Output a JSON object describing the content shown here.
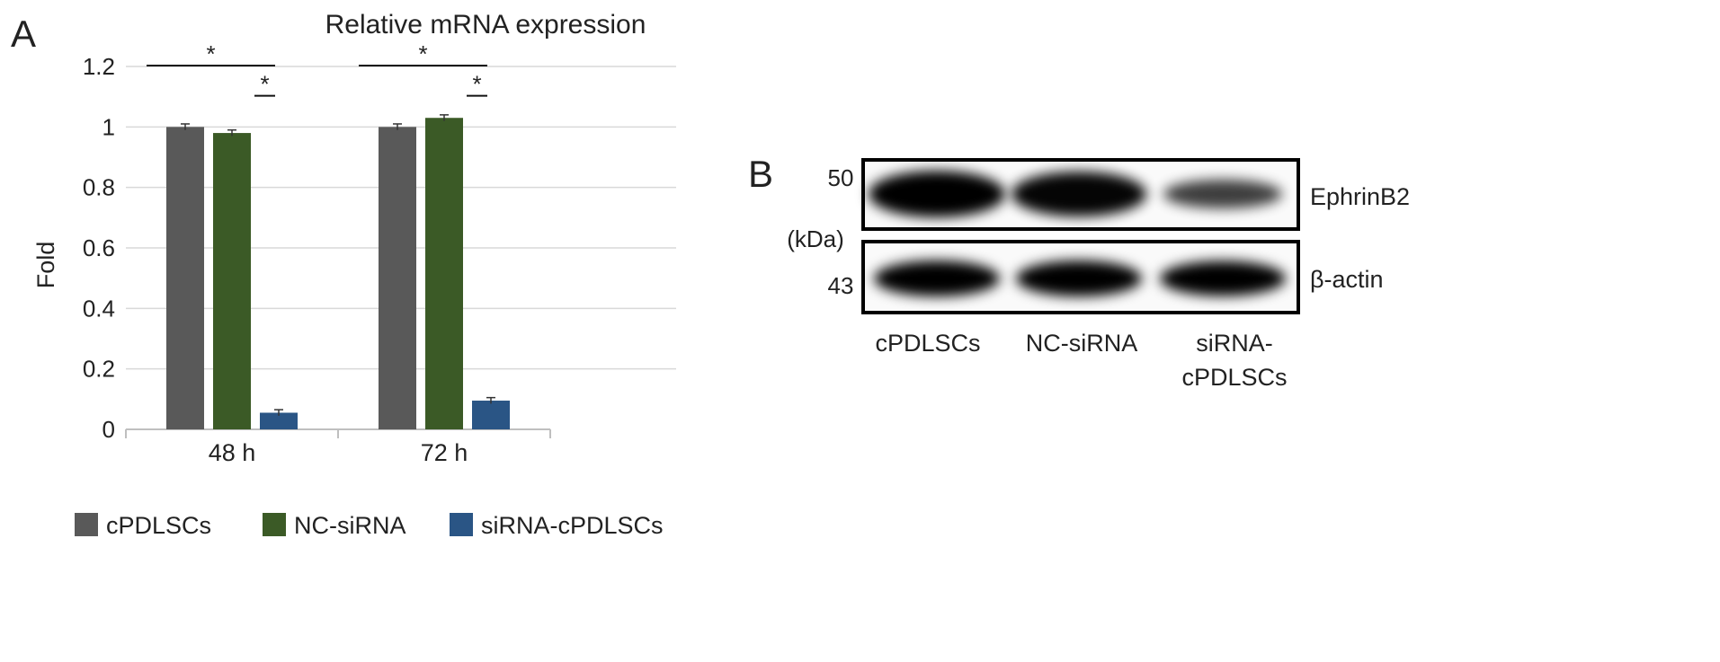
{
  "panel_a": {
    "letter": "A",
    "chart_data": {
      "type": "bar",
      "title": "Relative mRNA expression",
      "xlabel": "",
      "ylabel": "Fold",
      "categories": [
        "48 h",
        "72 h"
      ],
      "series": [
        {
          "name": "cPDLSCs",
          "values": [
            1.0,
            1.0
          ],
          "errors": [
            0.01,
            0.01
          ]
        },
        {
          "name": "NC-siRNA",
          "values": [
            0.98,
            1.03
          ],
          "errors": [
            0.01,
            0.01
          ]
        },
        {
          "name": "siRNA-cPDLSCs",
          "values": [
            0.055,
            0.095
          ],
          "errors": [
            0.01,
            0.01
          ]
        }
      ],
      "ylim": [
        0,
        1.2
      ],
      "yticks": [
        "0",
        "0.2",
        "0.4",
        "0.6",
        "0.8",
        "1",
        "1.2"
      ],
      "grid": true,
      "legend_position": "bottom",
      "significance": [
        {
          "category": "48 h",
          "from": "cPDLSCs",
          "to": "siRNA-cPDLSCs",
          "level": 1.2,
          "label": "*"
        },
        {
          "category": "48 h",
          "from": "NC-siRNA",
          "to": "siRNA-cPDLSCs",
          "level": 1.1,
          "label": "*"
        },
        {
          "category": "72 h",
          "from": "cPDLSCs",
          "to": "siRNA-cPDLSCs",
          "level": 1.2,
          "label": "*"
        },
        {
          "category": "72 h",
          "from": "NC-siRNA",
          "to": "siRNA-cPDLSCs",
          "level": 1.1,
          "label": "*"
        }
      ]
    },
    "colors": {
      "cPDLSCs": "#595959",
      "NC-siRNA": "#3b5a26",
      "siRNA-cPDLSCs": "#2a5585",
      "grid": "#d9d9d9",
      "axis": "#bfbfbf"
    }
  },
  "panel_b": {
    "letter": "B",
    "marker_top": "50",
    "marker_unit": "(kDa)",
    "marker_bottom": "43",
    "band_labels": [
      "EphrinB2",
      "β-actin"
    ],
    "lanes": [
      {
        "line1": "cPDLSCs",
        "line2": ""
      },
      {
        "line1": "NC-siRNA",
        "line2": ""
      },
      {
        "line1": "siRNA-",
        "line2": "cPDLSCs"
      }
    ],
    "ephrinb2_intensity": [
      1.0,
      0.95,
      0.45
    ],
    "actin_intensity": [
      1.0,
      1.0,
      0.98
    ]
  }
}
